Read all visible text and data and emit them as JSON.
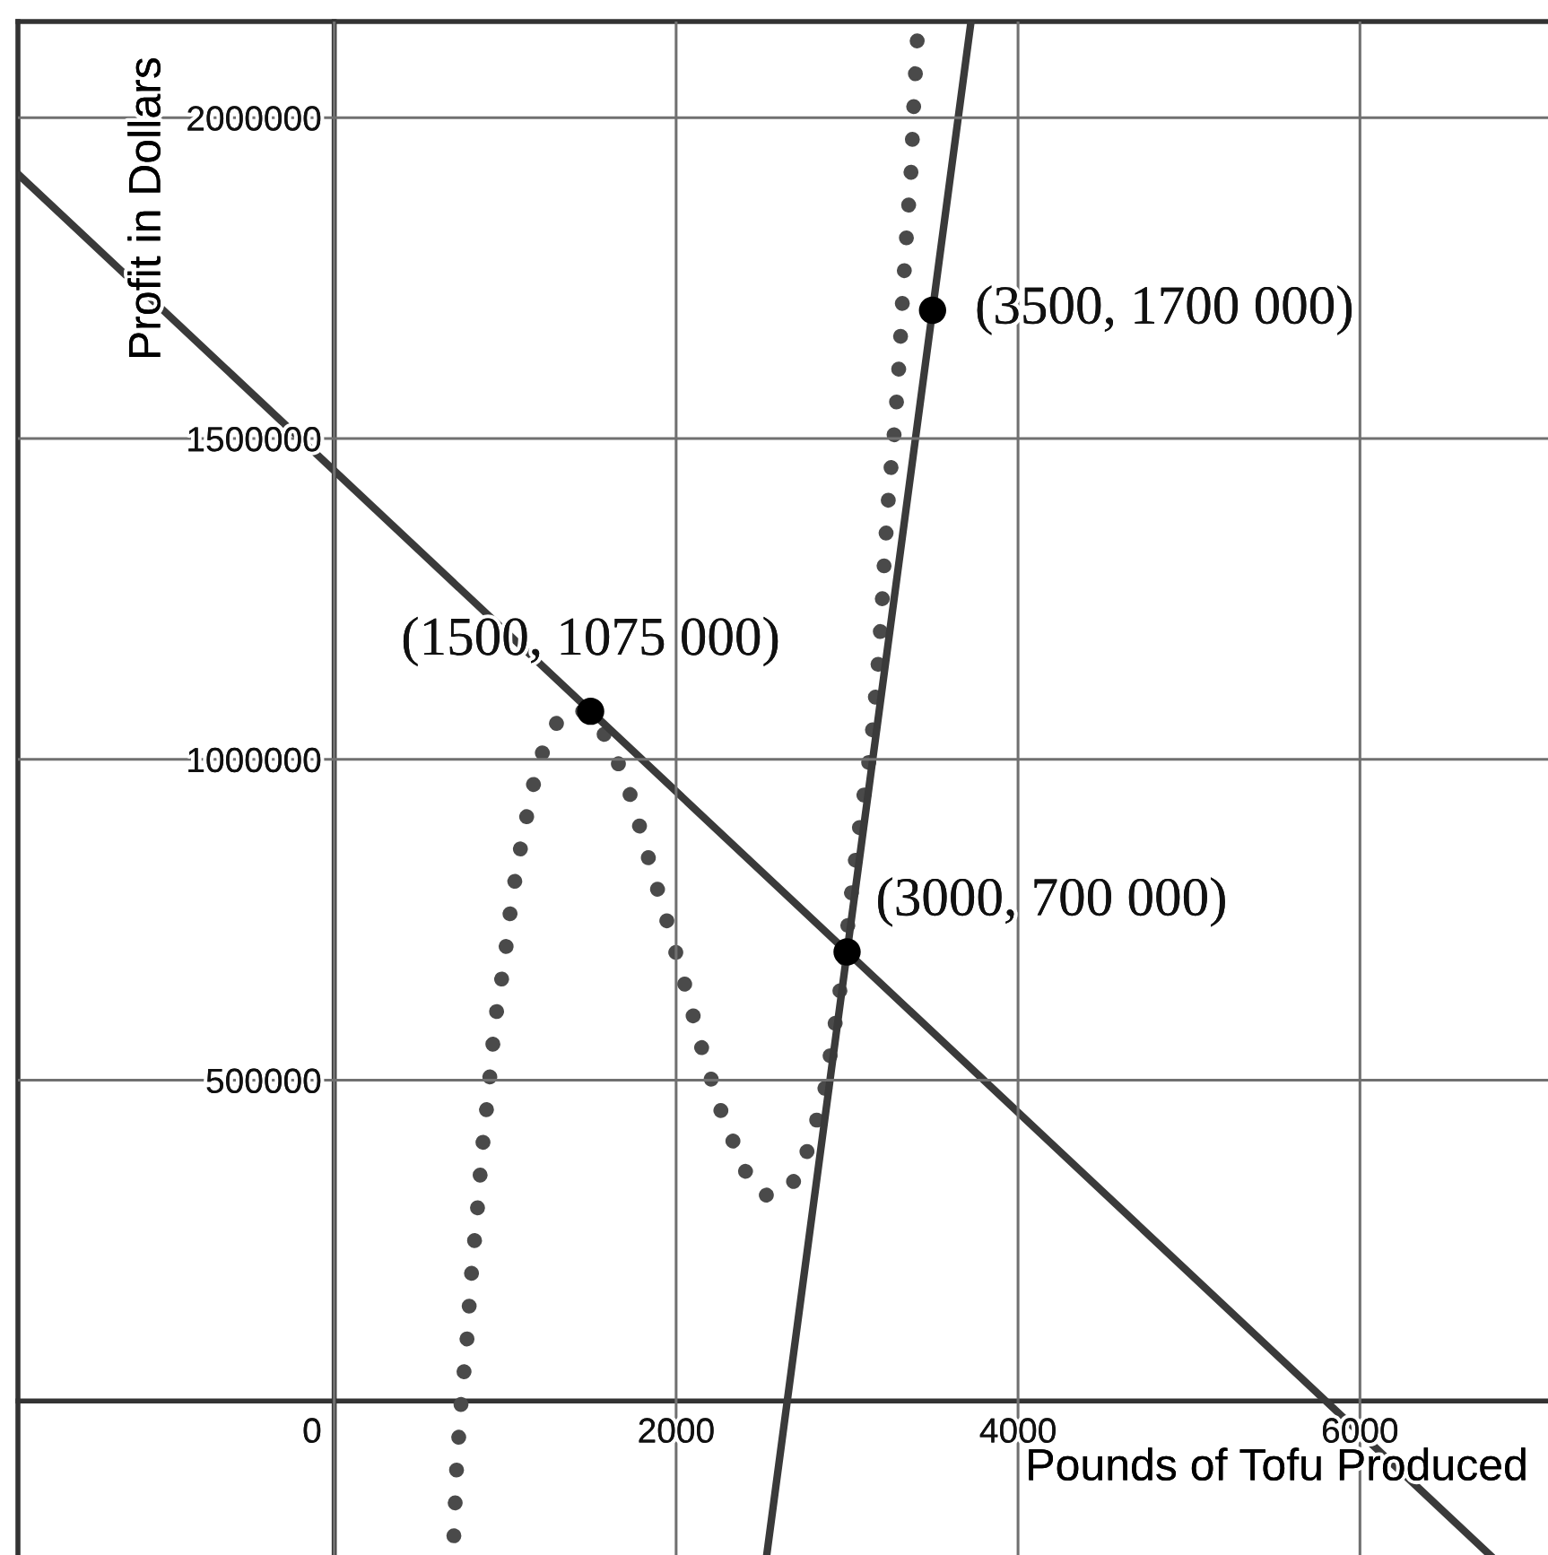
{
  "chart_data": {
    "type": "line",
    "xlabel": "Pounds of Tofu Produced",
    "ylabel": "Profit in Dollars",
    "xlim": [
      -1850,
      7100
    ],
    "ylim": [
      -240000,
      2150000
    ],
    "xticks": [
      0,
      2000,
      4000,
      6000
    ],
    "yticks": [
      500000,
      1000000,
      1500000,
      2000000
    ],
    "grid": true,
    "series": [
      {
        "color": "#4a4a4a",
        "line_style": "dotted",
        "x": [
          700,
          715,
          740,
          775,
          800,
          835,
          865,
          905,
          940,
          995,
          1040,
          1105,
          1185,
          1250,
          1345,
          1475,
          1605,
          1675,
          1745,
          1850,
          1955,
          2055,
          2155,
          2265,
          2400,
          2515,
          2665,
          2755,
          2860,
          2920,
          2975,
          3035,
          3085,
          3140,
          3175,
          3200,
          3220,
          3245,
          3280,
          3305,
          3325,
          3350,
          3375,
          3390,
          3410
        ],
        "values": [
          -210000,
          -110000,
          -10000,
          90000,
          190000,
          290000,
          390000,
          490000,
          590000,
          685000,
          785000,
          885000,
          985000,
          1035000,
          1075000,
          1075000,
          1030000,
          985000,
          935000,
          835000,
          740000,
          645000,
          545000,
          450000,
          360000,
          320000,
          330000,
          380000,
          470000,
          570000,
          670000,
          815000,
          920000,
          1020000,
          1125000,
          1220000,
          1320000,
          1420000,
          1520000,
          1620000,
          1720000,
          1825000,
          1920000,
          2020000,
          2120000
        ]
      },
      {
        "color": "#3a3a3a",
        "line_style": "solid",
        "x": [
          -1840,
          6760
        ],
        "values": [
          1910000,
          -240000
        ]
      },
      {
        "color": "#3a3a3a",
        "line_style": "solid",
        "x": [
          2530,
          3725
        ],
        "values": [
          -240000,
          2150000
        ]
      },
      {
        "type": "scatter",
        "color": "#000000",
        "marker": "circle",
        "x": [
          1500,
          3000,
          3500
        ],
        "values": [
          1075000,
          700000,
          1700000
        ]
      }
    ],
    "annotations": [
      {
        "text": "(1500, 1075 000)",
        "x": 1500,
        "y": 1075000
      },
      {
        "text": "(3500, 1700 000)",
        "x": 3500,
        "y": 1700000
      },
      {
        "text": "(3000, 700 000)",
        "x": 3000,
        "y": 700000
      }
    ]
  }
}
